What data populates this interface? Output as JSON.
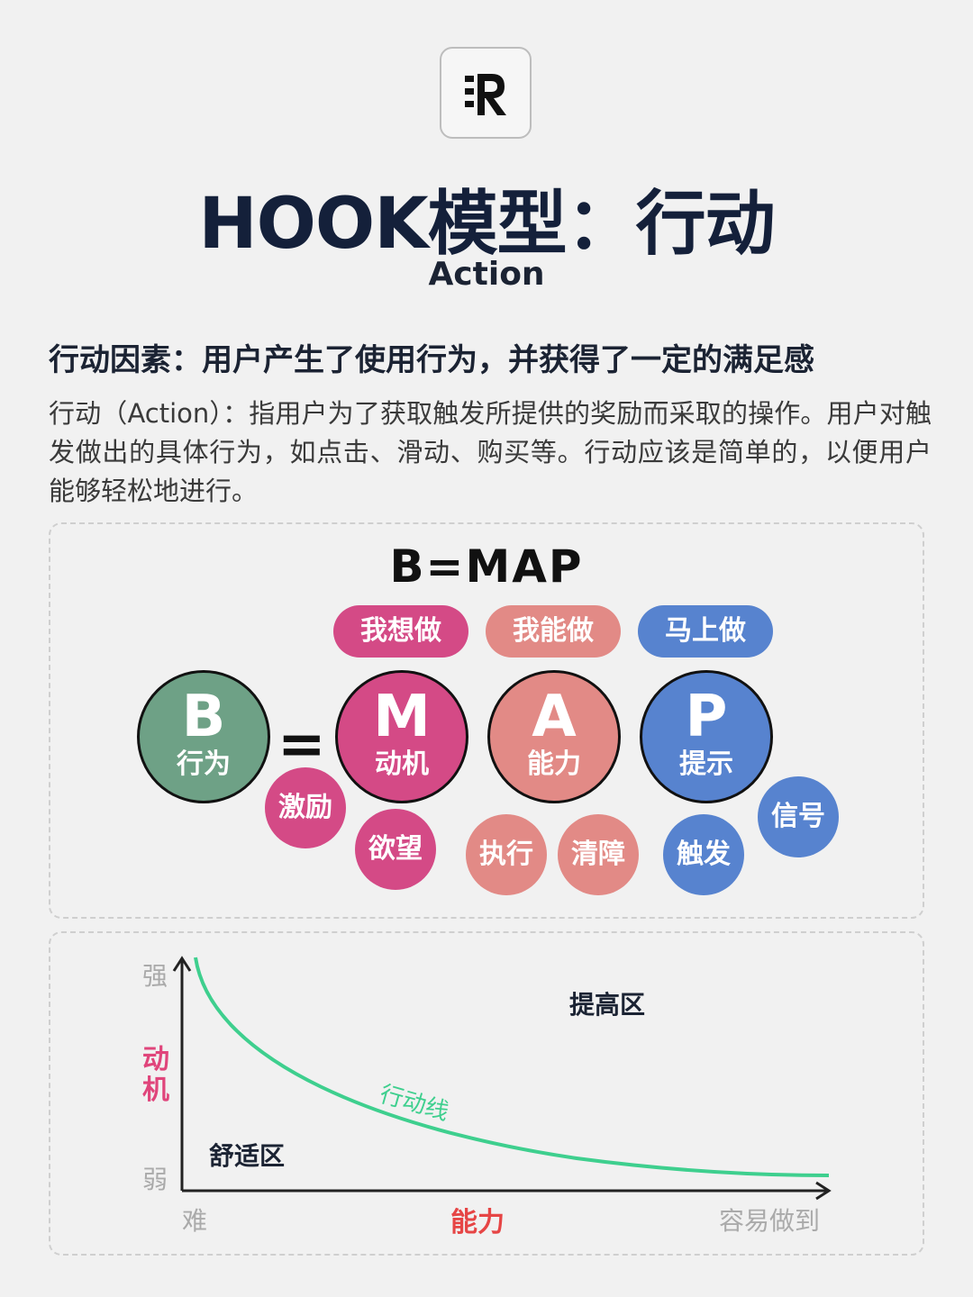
{
  "header": {
    "title": "HOOK模型：行动",
    "subtitle": "Action"
  },
  "intro": {
    "heading": "行动因素：用户产生了使用行为，并获得了一定的满足感",
    "description": "行动（Action）：指用户为了获取触发所提供的奖励而采取的操作。用户对触发做出的具体行为，如点击、滑动、购买等。行动应该是简单的，以便用户能够轻松地进行。"
  },
  "bmap": {
    "formula": "B=MAP",
    "equals": "=",
    "pills": [
      "我想做",
      "我能做",
      "马上做"
    ],
    "circles": [
      {
        "letter": "B",
        "label": "行为",
        "color": "#6ea186"
      },
      {
        "letter": "M",
        "label": "动机",
        "color": "#d44a86"
      },
      {
        "letter": "A",
        "label": "能力",
        "color": "#e28a86"
      },
      {
        "letter": "P",
        "label": "提示",
        "color": "#5783cf"
      }
    ],
    "tags": [
      "激励",
      "欲望",
      "执行",
      "清障",
      "触发",
      "信号"
    ],
    "colors": {
      "motivation": "#d44a86",
      "ability": "#e28a86",
      "prompt": "#5783cf"
    }
  },
  "curve_chart": {
    "y_axis_title": "动机",
    "y_high": "强",
    "y_low": "弱",
    "x_axis_title": "能力",
    "x_low": "难",
    "x_high": "容易做到",
    "line_label": "行动线",
    "upper_zone": "提高区",
    "lower_zone": "舒适区",
    "colors": {
      "line": "#3ecf8e",
      "axis_title": "#e0457b",
      "x_title": "#e64545"
    }
  }
}
